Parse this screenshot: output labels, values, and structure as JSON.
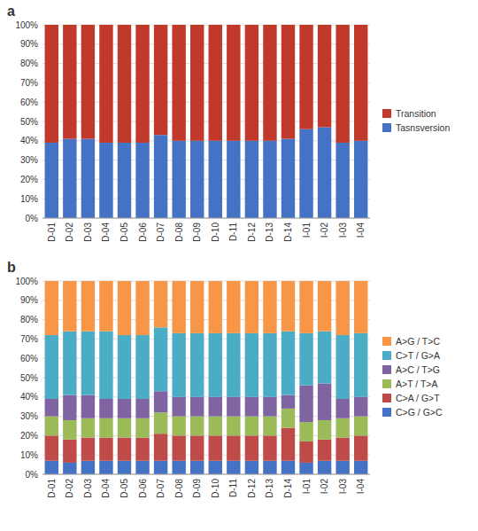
{
  "chart_data": [
    {
      "type": "bar",
      "title": "a",
      "stacked": true,
      "grid": true,
      "legend": "right",
      "categories": [
        "D-01",
        "D-02",
        "D-03",
        "D-04",
        "D-05",
        "D-06",
        "D-07",
        "D-08",
        "D-09",
        "D-10",
        "D-11",
        "D-12",
        "D-13",
        "D-14",
        "I-01",
        "I-02",
        "I-03",
        "I-04"
      ],
      "series": [
        {
          "name": "Tasnsversion",
          "color": "#4472C4",
          "values": [
            39,
            41,
            41,
            39,
            39,
            39,
            43,
            40,
            40,
            40,
            40,
            40,
            40,
            41,
            46,
            47,
            39,
            40
          ]
        },
        {
          "name": "Transition",
          "color": "#C0392B",
          "values": [
            61,
            59,
            59,
            61,
            61,
            61,
            57,
            60,
            60,
            60,
            60,
            60,
            60,
            59,
            54,
            53,
            61,
            60
          ]
        }
      ],
      "ylim": [
        0,
        100
      ],
      "yticks": [
        {
          "value": 0,
          "label": "0%"
        },
        {
          "value": 10,
          "label": "10%"
        },
        {
          "value": 20,
          "label": "20%"
        },
        {
          "value": 30,
          "label": "30%"
        },
        {
          "value": 40,
          "label": "40%"
        },
        {
          "value": 50,
          "label": "50%"
        },
        {
          "value": 60,
          "label": "60%"
        },
        {
          "value": 70,
          "label": "70%"
        },
        {
          "value": 80,
          "label": "80%"
        },
        {
          "value": 90,
          "label": "90%"
        },
        {
          "value": 100,
          "label": "100%"
        }
      ]
    },
    {
      "type": "bar",
      "title": "b",
      "stacked": true,
      "grid": true,
      "legend": "right",
      "categories": [
        "D-01",
        "D-02",
        "D-03",
        "D-04",
        "D-05",
        "D-06",
        "D-07",
        "D-08",
        "D-09",
        "D-10",
        "D-11",
        "D-12",
        "D-13",
        "D-14",
        "I-01",
        "I-02",
        "I-03",
        "I-04"
      ],
      "series": [
        {
          "name": "C>G / G>C",
          "color": "#4472C4",
          "values": [
            7,
            6,
            7,
            7,
            7,
            7,
            7,
            7,
            7,
            7,
            7,
            7,
            7,
            7,
            6,
            7,
            7,
            7
          ]
        },
        {
          "name": "C>A / G>T",
          "color": "#BE4B48",
          "values": [
            13,
            12,
            12,
            12,
            12,
            12,
            14,
            13,
            13,
            13,
            13,
            13,
            13,
            17,
            11,
            11,
            12,
            13
          ]
        },
        {
          "name": "A>T / T>A",
          "color": "#9BBB59",
          "values": [
            10,
            10,
            10,
            10,
            10,
            10,
            11,
            10,
            10,
            10,
            10,
            10,
            10,
            10,
            10,
            10,
            10,
            10
          ]
        },
        {
          "name": "A>C / T>G",
          "color": "#8064A2",
          "values": [
            9,
            13,
            12,
            10,
            10,
            10,
            11,
            10,
            10,
            10,
            10,
            10,
            10,
            7,
            19,
            19,
            10,
            10
          ]
        },
        {
          "name": "C>T / G>A",
          "color": "#4BACC6",
          "values": [
            33,
            33,
            33,
            35,
            33,
            33,
            33,
            33,
            33,
            33,
            33,
            33,
            33,
            33,
            27,
            27,
            33,
            33
          ]
        },
        {
          "name": "A>G / T>C",
          "color": "#F79646",
          "values": [
            28,
            26,
            26,
            26,
            28,
            28,
            24,
            27,
            27,
            27,
            27,
            27,
            27,
            26,
            27,
            26,
            28,
            27
          ]
        }
      ],
      "ylim": [
        0,
        100
      ],
      "yticks": [
        {
          "value": 0,
          "label": "0%"
        },
        {
          "value": 10,
          "label": "10%"
        },
        {
          "value": 20,
          "label": "20%"
        },
        {
          "value": 30,
          "label": "30%"
        },
        {
          "value": 40,
          "label": "40%"
        },
        {
          "value": 50,
          "label": "50%"
        },
        {
          "value": 60,
          "label": "60%"
        },
        {
          "value": 70,
          "label": "70%"
        },
        {
          "value": 80,
          "label": "80%"
        },
        {
          "value": 90,
          "label": "90%"
        },
        {
          "value": 100,
          "label": "100%"
        }
      ]
    }
  ]
}
